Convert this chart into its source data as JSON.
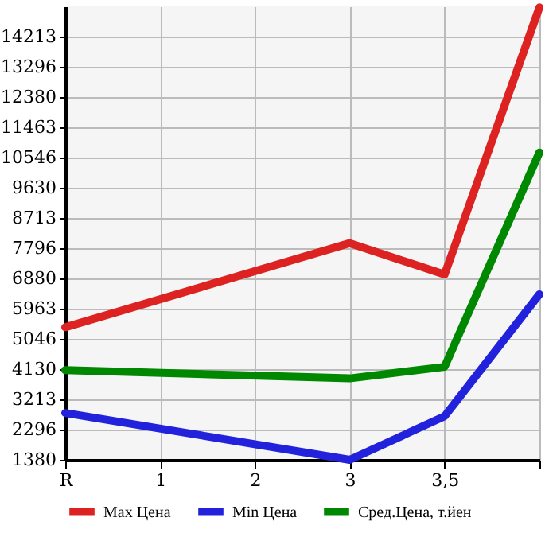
{
  "chart_data": {
    "type": "line",
    "categories": [
      "R",
      "1",
      "2",
      "3",
      "3,5",
      null
    ],
    "series": [
      {
        "name": "Max Цена",
        "color": "#dd2222",
        "values": [
          5400,
          null,
          null,
          7950,
          7000,
          15100
        ]
      },
      {
        "name": "Min Цена",
        "color": "#2222dd",
        "values": [
          2800,
          null,
          null,
          1380,
          2700,
          6400
        ]
      },
      {
        "name": "Сред.Цена, т.йен",
        "color": "#008800",
        "values": [
          4100,
          null,
          null,
          3850,
          4200,
          10700
        ]
      }
    ],
    "ylim": [
      1380,
      15130
    ],
    "yticks": [
      1380,
      2296,
      3213,
      4130,
      5046,
      5963,
      6880,
      7796,
      8713,
      9630,
      10546,
      11463,
      12380,
      13296,
      14213
    ],
    "grid": true,
    "legend": "bottom",
    "marker": "none",
    "line_style": "solid"
  }
}
